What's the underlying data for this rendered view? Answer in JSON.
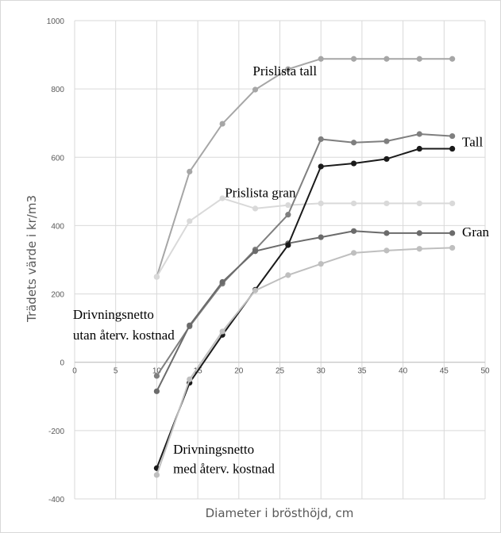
{
  "chart_data": {
    "type": "line",
    "title": "",
    "xlabel": "Diameter i brösthöjd, cm",
    "ylabel": "Trädets värde i kr/m3",
    "xlim": [
      0,
      50
    ],
    "ylim": [
      -400,
      1000
    ],
    "xticks": [
      0,
      5,
      10,
      15,
      20,
      25,
      30,
      35,
      40,
      45,
      50
    ],
    "yticks": [
      -400,
      -200,
      0,
      200,
      400,
      600,
      800,
      1000
    ],
    "grid": true,
    "legend": "none",
    "x": [
      10,
      14,
      18,
      22,
      26,
      30,
      34,
      38,
      42,
      46
    ],
    "series": [
      {
        "name": "Prislista tall",
        "color": "#a6a6a6",
        "values": [
          250,
          558,
          698,
          798,
          858,
          888,
          888,
          888,
          888,
          888
        ]
      },
      {
        "name": "Prislista gran",
        "color": "#d9d9d9",
        "values": [
          250,
          413,
          480,
          450,
          460,
          465,
          465,
          465,
          465,
          465
        ]
      },
      {
        "name": "Tall",
        "color": "#7f7f7f",
        "values": [
          -40,
          105,
          230,
          330,
          432,
          653,
          643,
          647,
          668,
          662
        ]
      },
      {
        "name": "Gran",
        "color": "#6b6b6b",
        "values": [
          -85,
          108,
          235,
          325,
          348,
          366,
          384,
          378,
          378,
          378
        ]
      },
      {
        "name": "Drivningsnetto med återv. kostnad",
        "color": "#1a1a1a",
        "values": [
          -310,
          -60,
          80,
          212,
          343,
          573,
          582,
          595,
          625,
          625
        ]
      },
      {
        "name": "Drivningsnetto med återv. kostnad",
        "color": "#bfbfbf",
        "values": [
          -330,
          -50,
          90,
          210,
          255,
          288,
          320,
          327,
          332,
          335
        ]
      }
    ],
    "annotations": [
      {
        "text": "Prislista tall",
        "x": 21.7,
        "y": 840
      },
      {
        "text": "Prislista gran",
        "x": 18.3,
        "y": 483
      },
      {
        "text": "Tall",
        "x": 47.2,
        "y": 632
      },
      {
        "text": "Gran",
        "x": 47.2,
        "y": 368
      },
      {
        "text": "Drivningsnetto",
        "x": -0.2,
        "y": 127
      },
      {
        "text": "utan återv. kostnad",
        "x": -0.2,
        "y": 67
      },
      {
        "text": "Drivningsnetto",
        "x": 12.0,
        "y": -268
      },
      {
        "text": "med återv. kostnad",
        "x": 12.0,
        "y": -325
      }
    ]
  }
}
